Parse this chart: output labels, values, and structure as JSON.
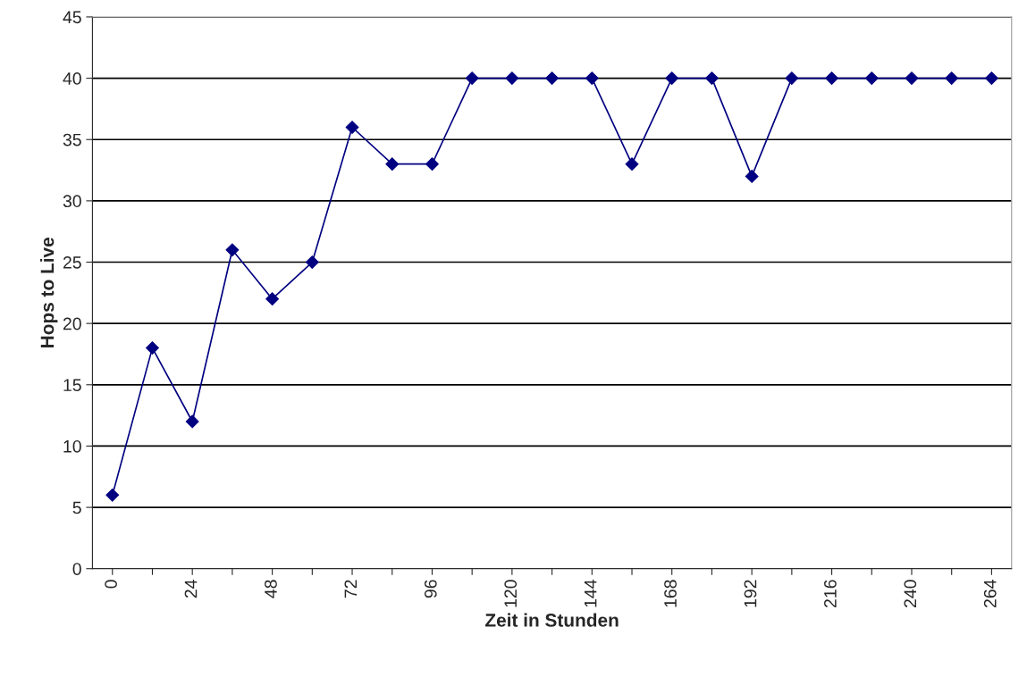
{
  "chart_data": {
    "type": "line",
    "xlabel": "Zeit in Stunden",
    "ylabel": "Hops to Live",
    "categories": [
      "0",
      null,
      "24",
      null,
      "48",
      null,
      "72",
      null,
      "96",
      null,
      "120",
      null,
      "144",
      null,
      "168",
      null,
      "192",
      null,
      "216",
      null,
      "240",
      null,
      "264"
    ],
    "series": [
      {
        "color": "#000080",
        "values": [
          6,
          18,
          12,
          26,
          22,
          25,
          36,
          33,
          33,
          40,
          40,
          40,
          40,
          33,
          40,
          40,
          32,
          40,
          40,
          40,
          40,
          40,
          40
        ]
      }
    ],
    "ylim": [
      0,
      45
    ],
    "yticks": [
      0,
      5,
      10,
      15,
      20,
      25,
      30,
      35,
      40,
      45
    ],
    "grid": "y",
    "marker": "diamond",
    "line_style": "solid",
    "legend": false
  }
}
